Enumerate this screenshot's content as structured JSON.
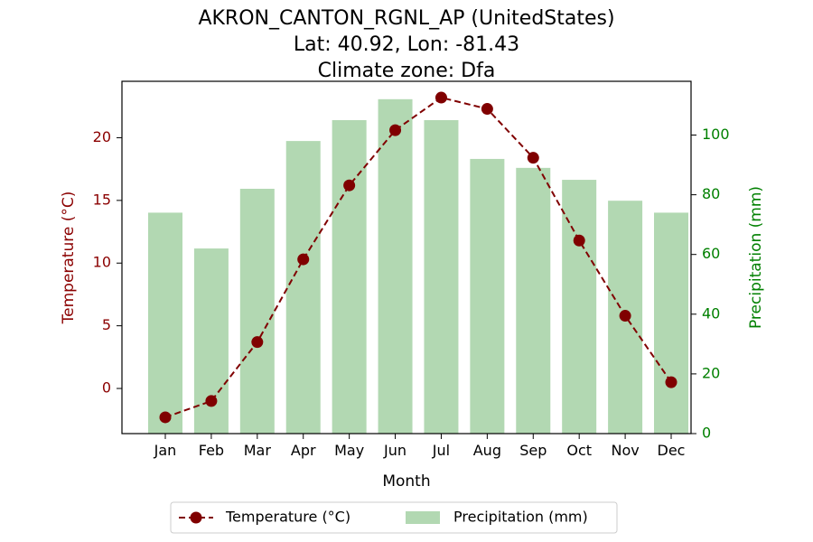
{
  "chart_data": {
    "type": "bar+line",
    "title_lines": [
      "AKRON_CANTON_RGNL_AP (UnitedStates)",
      "Lat: 40.92, Lon: -81.43",
      "Climate zone: Dfa"
    ],
    "xlabel": "Month",
    "ylabel_left": "Temperature (°C)",
    "ylabel_right": "Precipitation (mm)",
    "categories": [
      "Jan",
      "Feb",
      "Mar",
      "Apr",
      "May",
      "Jun",
      "Jul",
      "Aug",
      "Sep",
      "Oct",
      "Nov",
      "Dec"
    ],
    "series": [
      {
        "name": "Temperature (°C)",
        "type": "line",
        "axis": "left",
        "color": "#800000",
        "values": [
          -2.3,
          -1.0,
          3.7,
          10.3,
          16.2,
          20.6,
          23.2,
          22.3,
          18.4,
          11.8,
          5.8,
          0.5
        ]
      },
      {
        "name": "Precipitation (mm)",
        "type": "bar",
        "axis": "right",
        "color": "#b2d8b2",
        "values": [
          74,
          62,
          82,
          98,
          105,
          112,
          105,
          92,
          89,
          85,
          78,
          74
        ]
      }
    ],
    "ylim_left": [
      -3.6,
      24.5
    ],
    "ylim_right": [
      0,
      118
    ],
    "yticks_left": [
      0,
      5,
      10,
      15,
      20
    ],
    "yticks_right": [
      0,
      20,
      40,
      60,
      80,
      100
    ],
    "left_axis_color": "#8b0000",
    "right_axis_color": "#008000",
    "legend_position": "bottom-center"
  }
}
